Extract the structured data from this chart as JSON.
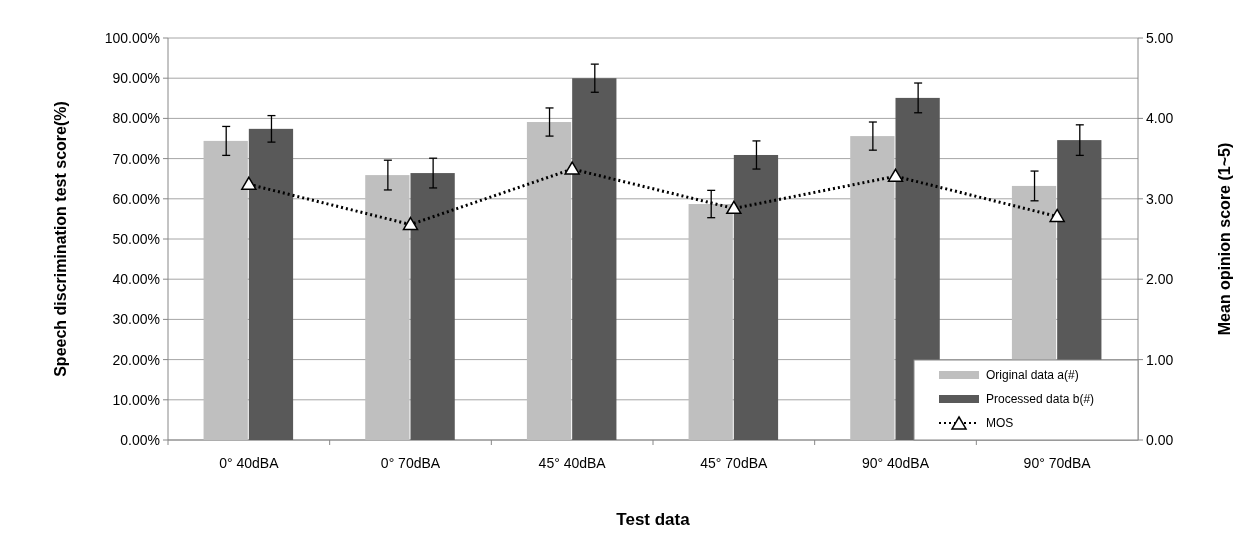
{
  "chart_data": {
    "type": "bar",
    "xlabel": "Test data",
    "ylabel": "Speech discrimination  test score(%)",
    "y2label": "Mean opinion score  (1~5)",
    "categories": [
      "0° 40dBA",
      "0° 70dBA",
      "45° 40dBA",
      "45° 70dBA",
      "90° 40dBA",
      "90° 70dBA"
    ],
    "series": [
      {
        "name": "Original data  a(#)",
        "color": "#bfbfbf",
        "values": [
          74.4,
          65.9,
          79.1,
          58.7,
          75.6,
          63.2
        ],
        "errors": [
          3.6,
          3.7,
          3.5,
          3.4,
          3.5,
          3.7
        ]
      },
      {
        "name": "Processed data b(#)",
        "color": "#595959",
        "values": [
          77.4,
          66.4,
          90.0,
          70.9,
          85.1,
          74.6
        ],
        "errors": [
          3.3,
          3.7,
          3.5,
          3.5,
          3.7,
          3.8
        ]
      },
      {
        "name": "MOS",
        "type": "line",
        "axis": "y2",
        "color": "#000000",
        "marker": "triangle",
        "line_style": "dotted",
        "values": [
          3.18,
          2.68,
          3.37,
          2.88,
          3.28,
          2.78
        ]
      }
    ],
    "ylim": [
      0,
      100
    ],
    "yticks": [
      {
        "value": 0,
        "label": "0.00%"
      },
      {
        "value": 10,
        "label": "10.00%"
      },
      {
        "value": 20,
        "label": "20.00%"
      },
      {
        "value": 30,
        "label": "30.00%"
      },
      {
        "value": 40,
        "label": "40.00%"
      },
      {
        "value": 50,
        "label": "50.00%"
      },
      {
        "value": 60,
        "label": "60.00%"
      },
      {
        "value": 70,
        "label": "70.00%"
      },
      {
        "value": 80,
        "label": "80.00%"
      },
      {
        "value": 90,
        "label": "90.00%"
      },
      {
        "value": 100,
        "label": "100.00%"
      }
    ],
    "y2lim": [
      0,
      5
    ],
    "y2ticks": [
      {
        "value": 0,
        "label": "0.00"
      },
      {
        "value": 1,
        "label": "1.00"
      },
      {
        "value": 2,
        "label": "2.00"
      },
      {
        "value": 3,
        "label": "3.00"
      },
      {
        "value": 4,
        "label": "4.00"
      },
      {
        "value": 5,
        "label": "5.00"
      }
    ],
    "grid": "y",
    "legend": "bottom right"
  }
}
